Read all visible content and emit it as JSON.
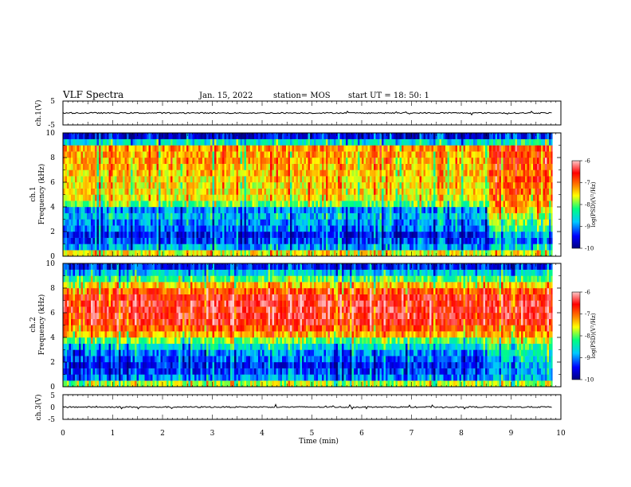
{
  "header": {
    "title": "VLF Spectra",
    "date": "Jan. 15, 2022",
    "station": "station= MOS",
    "start": "start  UT =   18: 50: 1"
  },
  "xaxis": {
    "label": "Time  (min)",
    "ticks": [
      "0",
      "1",
      "2",
      "3",
      "4",
      "5",
      "6",
      "7",
      "8",
      "9",
      "10"
    ],
    "range": [
      0,
      10
    ]
  },
  "panels": {
    "ch1v": {
      "ylabel": "ch.1(V)",
      "ticks": [
        "5",
        "-5"
      ]
    },
    "ch1": {
      "ylabel_top": "ch.1",
      "ylabel_bottom": "Frequency  (kHz)",
      "ticks": [
        "10",
        "8",
        "6",
        "4",
        "2",
        "0"
      ]
    },
    "ch2": {
      "ylabel_top": "ch.2",
      "ylabel_bottom": "Frequency  (kHz)",
      "ticks": [
        "10",
        "8",
        "6",
        "4",
        "2",
        "0"
      ]
    },
    "ch3v": {
      "ylabel": "ch.3(V)",
      "ticks": [
        "5",
        "0",
        "-5"
      ]
    }
  },
  "colorbar": {
    "ticks": [
      "-6",
      "-7",
      "-8",
      "-9",
      "-10"
    ],
    "label": "log(PSD)(V²/Hz)",
    "range": [
      -10,
      -6
    ],
    "colors": [
      "#000080",
      "#0000ff",
      "#00c8ff",
      "#00ff80",
      "#ffff00",
      "#ff8000",
      "#ff0000",
      "#ffc8c8"
    ]
  },
  "chart_data": {
    "type": "heatmap",
    "title": "VLF Spectra",
    "xlabel": "Time  (min)",
    "xlim": [
      0,
      10
    ],
    "data_end_min": 9.83,
    "spectrograms": [
      {
        "name": "ch.1",
        "ylabel": "Frequency  (kHz)",
        "ylim": [
          0,
          10
        ],
        "zlim": [
          -10,
          -6
        ],
        "freq_kHz": [
          0.25,
          0.75,
          1.25,
          1.75,
          2.25,
          2.75,
          3.25,
          3.75,
          4.25,
          4.75,
          5.25,
          5.75,
          6.25,
          6.75,
          7.25,
          7.75,
          8.25,
          8.75,
          9.25,
          9.75
        ],
        "logpsd_0_8_5": [
          -7.6,
          -8.9,
          -9.3,
          -9.5,
          -9.1,
          -9.0,
          -8.8,
          -9.0,
          -8.0,
          -7.6,
          -7.5,
          -7.5,
          -7.5,
          -7.4,
          -7.4,
          -7.3,
          -7.3,
          -7.2,
          -8.6,
          -9.6
        ],
        "logpsd_8_5_10": [
          -7.6,
          -8.6,
          -9.0,
          -8.8,
          -8.2,
          -8.0,
          -7.8,
          -7.5,
          -7.2,
          -7.1,
          -7.0,
          -7.0,
          -6.9,
          -6.9,
          -6.9,
          -6.8,
          -6.8,
          -6.8,
          -8.3,
          -9.3
        ]
      },
      {
        "name": "ch.2",
        "ylabel": "Frequency  (kHz)",
        "ylim": [
          0,
          10
        ],
        "zlim": [
          -10,
          -6
        ],
        "freq_kHz": [
          0.25,
          0.75,
          1.25,
          1.75,
          2.25,
          2.75,
          3.25,
          3.75,
          4.25,
          4.75,
          5.25,
          5.75,
          6.25,
          6.75,
          7.25,
          7.75,
          8.25,
          8.75,
          9.25,
          9.75
        ],
        "logpsd_0_8_5": [
          -7.8,
          -9.0,
          -9.3,
          -9.4,
          -9.2,
          -9.0,
          -8.6,
          -8.0,
          -7.3,
          -6.9,
          -6.6,
          -6.5,
          -6.5,
          -6.5,
          -6.6,
          -6.9,
          -7.4,
          -8.1,
          -8.7,
          -9.4
        ],
        "logpsd_8_5_10": [
          -7.8,
          -8.7,
          -8.9,
          -8.8,
          -8.6,
          -8.4,
          -8.2,
          -7.7,
          -7.2,
          -6.9,
          -6.6,
          -6.5,
          -6.5,
          -6.5,
          -6.6,
          -6.9,
          -7.4,
          -8.1,
          -8.7,
          -9.4
        ]
      }
    ],
    "waveforms": [
      {
        "name": "ch.1(V)",
        "ylim": [
          -5,
          5
        ],
        "level_V": 0
      },
      {
        "name": "ch.3(V)",
        "ylim": [
          -5,
          5
        ],
        "level_V": 0
      }
    ]
  }
}
